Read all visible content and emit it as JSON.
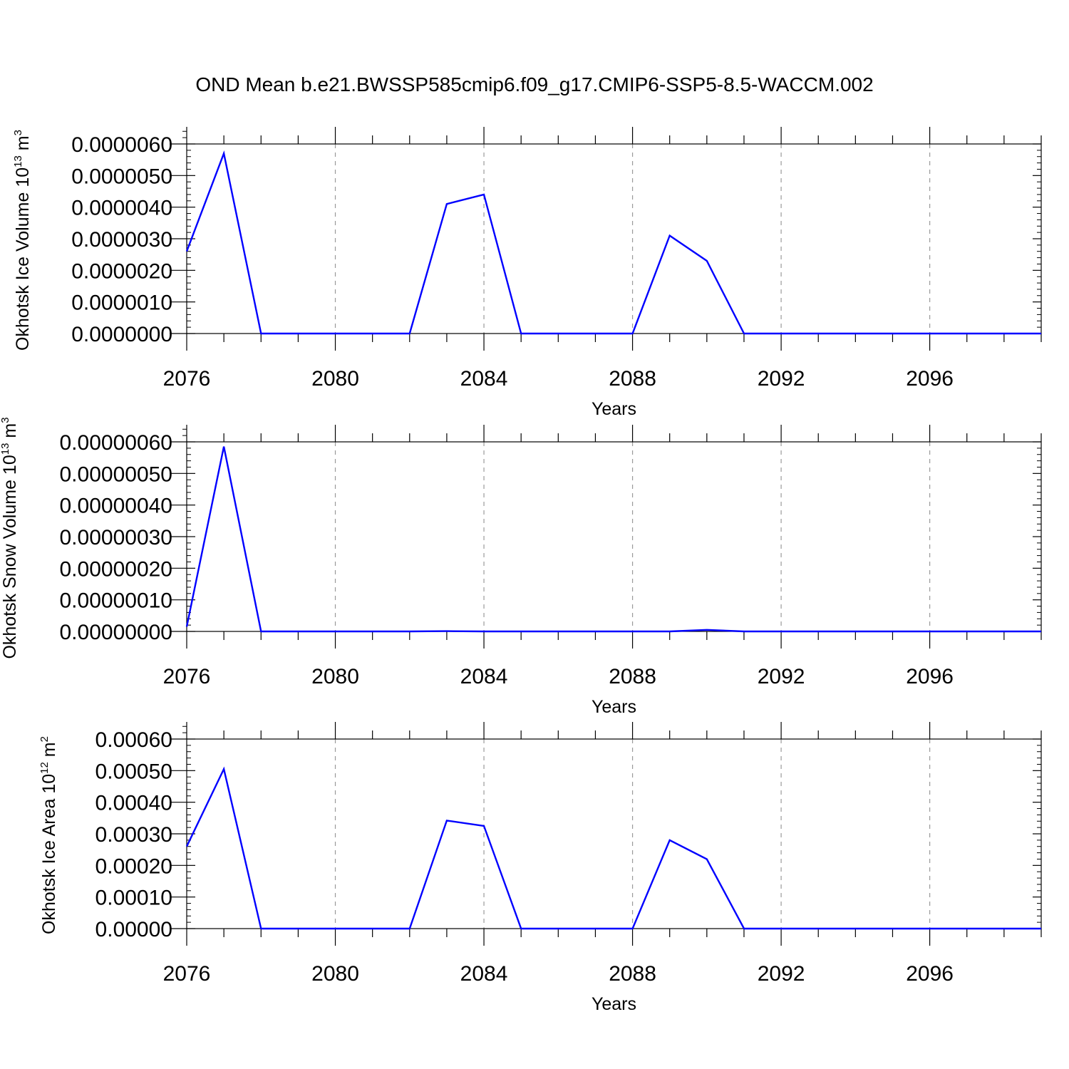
{
  "title": "OND Mean b.e21.BWSSP585cmip6.f09_g17.CMIP6-SSP5-8.5-WACCM.002",
  "colors": {
    "series": "#0000ff",
    "axis": "#000000",
    "grid": "#9a9a9a"
  },
  "chart_data": [
    {
      "type": "line",
      "ylabel": {
        "text": "Okhotsk Ice Volume 10",
        "sup": "13",
        "unit": " m",
        "unit_sup": "3"
      },
      "xlabel": "Years",
      "xlim": [
        2076,
        2099
      ],
      "ylim": [
        0,
        6e-06
      ],
      "xticks": [
        2076,
        2080,
        2084,
        2088,
        2092,
        2096
      ],
      "xtick_labels": [
        "2076",
        "2080",
        "2084",
        "2088",
        "2092",
        "2096"
      ],
      "yticks": [
        0,
        1e-06,
        2e-06,
        3e-06,
        4e-06,
        5e-06,
        6e-06
      ],
      "ytick_labels": [
        "0.0000000",
        "0.0000010",
        "0.0000020",
        "0.0000030",
        "0.0000040",
        "0.0000050",
        "0.0000060"
      ],
      "grid": "vertical dashed at major x ticks",
      "x": [
        2076,
        2077,
        2078,
        2079,
        2080,
        2081,
        2082,
        2083,
        2084,
        2085,
        2086,
        2087,
        2088,
        2089,
        2090,
        2091,
        2092,
        2093,
        2094,
        2095,
        2096,
        2097,
        2098,
        2099
      ],
      "values": [
        2.6e-06,
        5.7e-06,
        0,
        0,
        0,
        0,
        0,
        4.1e-06,
        4.4e-06,
        0,
        0,
        0,
        0,
        3.1e-06,
        2.3e-06,
        0,
        0,
        0,
        0,
        0,
        0,
        0,
        0,
        0
      ]
    },
    {
      "type": "line",
      "ylabel": {
        "text": "Okhotsk Snow Volume 10",
        "sup": "13",
        "unit": " m",
        "unit_sup": "3"
      },
      "xlabel": "Years",
      "xlim": [
        2076,
        2099
      ],
      "ylim": [
        0,
        6e-07
      ],
      "xticks": [
        2076,
        2080,
        2084,
        2088,
        2092,
        2096
      ],
      "xtick_labels": [
        "2076",
        "2080",
        "2084",
        "2088",
        "2092",
        "2096"
      ],
      "yticks": [
        0,
        1e-07,
        2e-07,
        3e-07,
        4e-07,
        5e-07,
        6e-07
      ],
      "ytick_labels": [
        "0.00000000",
        "0.00000010",
        "0.00000020",
        "0.00000030",
        "0.00000040",
        "0.00000050",
        "0.00000060"
      ],
      "grid": "vertical dashed at major x ticks",
      "x": [
        2076,
        2077,
        2078,
        2079,
        2080,
        2081,
        2082,
        2083,
        2084,
        2085,
        2086,
        2087,
        2088,
        2089,
        2090,
        2091,
        2092,
        2093,
        2094,
        2095,
        2096,
        2097,
        2098,
        2099
      ],
      "values": [
        1.5e-08,
        5.85e-07,
        0,
        0,
        0,
        0,
        0,
        1e-09,
        0,
        0,
        0,
        0,
        0,
        0,
        5e-09,
        0,
        0,
        0,
        0,
        0,
        0,
        0,
        0,
        0
      ]
    },
    {
      "type": "line",
      "ylabel": {
        "text": "Okhotsk Ice Area 10",
        "sup": "12",
        "unit": " m",
        "unit_sup": "2"
      },
      "xlabel": "Years",
      "xlim": [
        2076,
        2099
      ],
      "ylim": [
        0,
        0.0006
      ],
      "xticks": [
        2076,
        2080,
        2084,
        2088,
        2092,
        2096
      ],
      "xtick_labels": [
        "2076",
        "2080",
        "2084",
        "2088",
        "2092",
        "2096"
      ],
      "yticks": [
        0,
        0.0001,
        0.0002,
        0.0003,
        0.0004,
        0.0005,
        0.0006
      ],
      "ytick_labels": [
        "0.00000",
        "0.00010",
        "0.00020",
        "0.00030",
        "0.00040",
        "0.00050",
        "0.00060"
      ],
      "grid": "vertical dashed at major x ticks",
      "x": [
        2076,
        2077,
        2078,
        2079,
        2080,
        2081,
        2082,
        2083,
        2084,
        2085,
        2086,
        2087,
        2088,
        2089,
        2090,
        2091,
        2092,
        2093,
        2094,
        2095,
        2096,
        2097,
        2098,
        2099
      ],
      "values": [
        0.00026,
        0.000505,
        0,
        0,
        0,
        0,
        0,
        0.000342,
        0.000325,
        0,
        0,
        0,
        0,
        0.00028,
        0.00022,
        0,
        0,
        0,
        0,
        0,
        0,
        0,
        0,
        0
      ]
    }
  ]
}
